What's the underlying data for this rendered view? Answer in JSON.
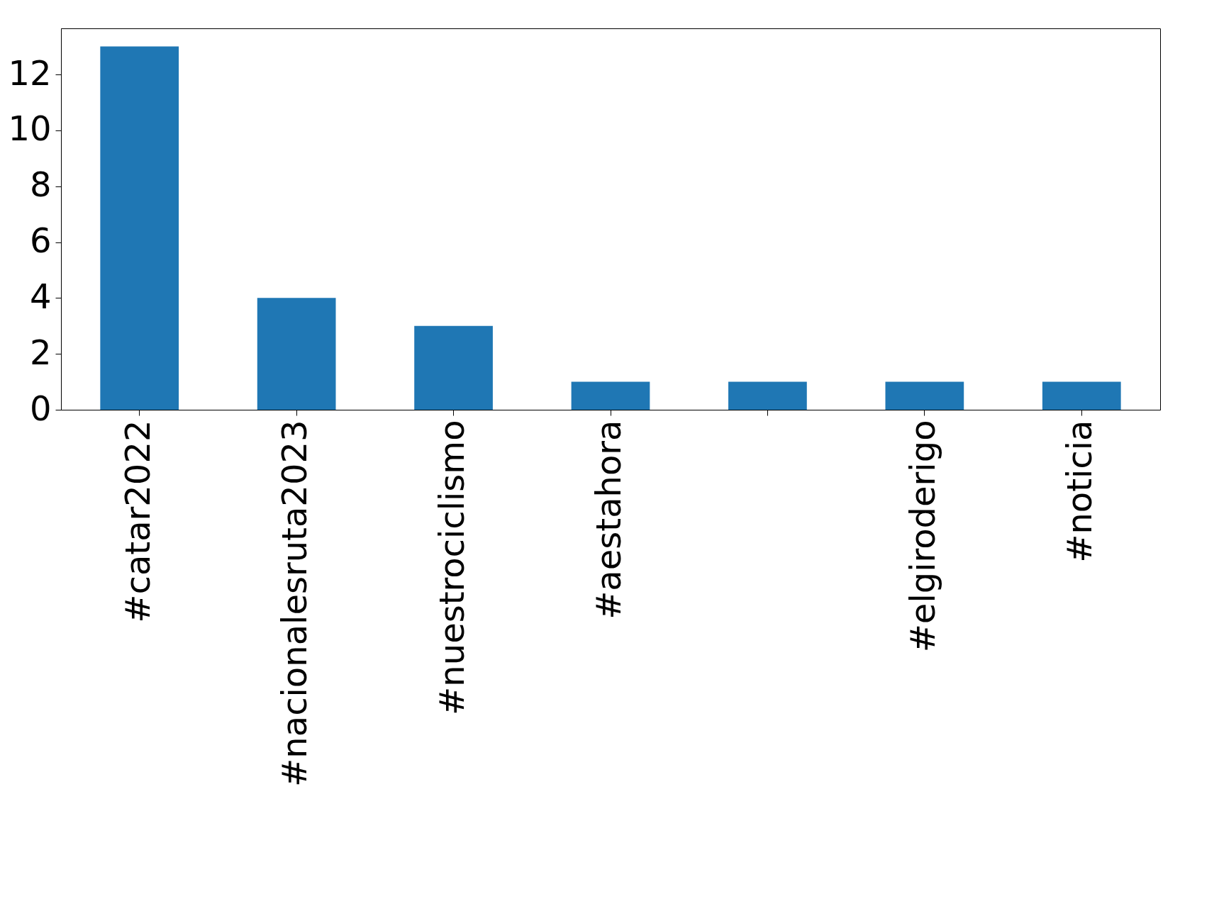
{
  "chart_data": {
    "type": "bar",
    "categories": [
      "#catar2022",
      "#nacionalesruta2023",
      "#nuestrociclismo",
      "#aestahora",
      null,
      "#elgiroderigo",
      "#noticia"
    ],
    "values": [
      13,
      4,
      3,
      1,
      1,
      1,
      1
    ],
    "color": "#1f77b4",
    "ylim": [
      0,
      13.65
    ],
    "yticks": [
      0,
      2,
      4,
      6,
      8,
      10,
      12
    ],
    "grid": false
  }
}
